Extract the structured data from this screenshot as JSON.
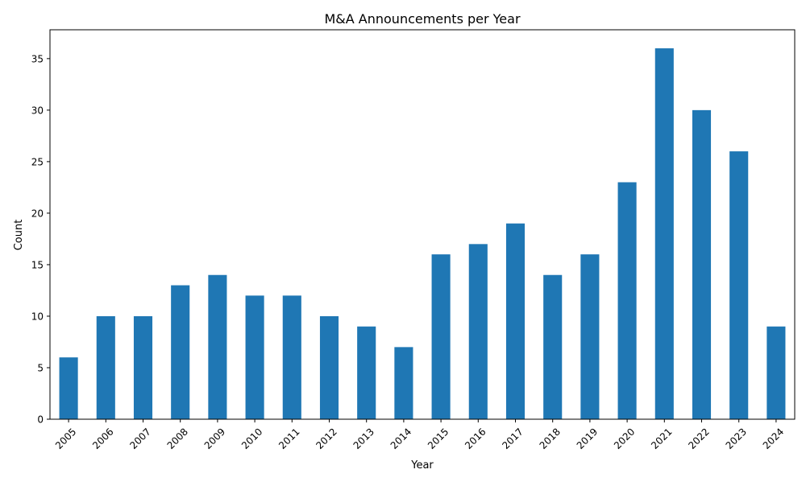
{
  "chart_data": {
    "type": "bar",
    "title": "M&A Announcements per Year",
    "xlabel": "Year",
    "ylabel": "Count",
    "categories": [
      "2005",
      "2006",
      "2007",
      "2008",
      "2009",
      "2010",
      "2011",
      "2012",
      "2013",
      "2014",
      "2015",
      "2016",
      "2017",
      "2018",
      "2019",
      "2020",
      "2021",
      "2022",
      "2023",
      "2024"
    ],
    "values": [
      6,
      10,
      10,
      13,
      14,
      12,
      12,
      10,
      9,
      7,
      16,
      17,
      19,
      14,
      16,
      23,
      36,
      30,
      26,
      9
    ],
    "ylim": [
      0,
      37.8
    ],
    "yticks": [
      0,
      5,
      10,
      15,
      20,
      25,
      30,
      35
    ],
    "bar_color": "#1f77b4",
    "grid": false,
    "legend": false
  }
}
